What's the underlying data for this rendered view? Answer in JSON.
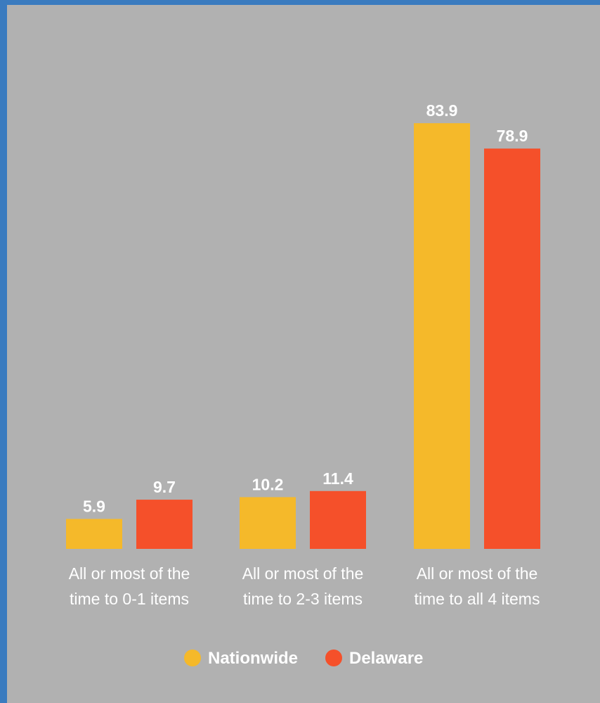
{
  "colors": {
    "frame": "#3a7bbf",
    "background": "#b1b1b1",
    "text": "#ffffff"
  },
  "chart_data": {
    "type": "bar",
    "title": "",
    "xlabel": "",
    "ylabel": "",
    "ylim": [
      0,
      90
    ],
    "grid": false,
    "legend_position": "bottom",
    "categories": [
      [
        "All or most of the",
        "time to 0-1 items"
      ],
      [
        "All or most of the",
        "time to 2-3 items"
      ],
      [
        "All or most of the",
        "time to all 4 items"
      ]
    ],
    "series": [
      {
        "name": "Nationwide",
        "color": "#f5b92a",
        "values": [
          5.9,
          10.2,
          83.9
        ],
        "labels": [
          "5.9",
          "10.2",
          "83.9"
        ]
      },
      {
        "name": "Delaware",
        "color": "#f5502a",
        "values": [
          9.7,
          11.4,
          78.9
        ],
        "labels": [
          "9.7",
          "11.4",
          "78.9"
        ]
      }
    ]
  }
}
